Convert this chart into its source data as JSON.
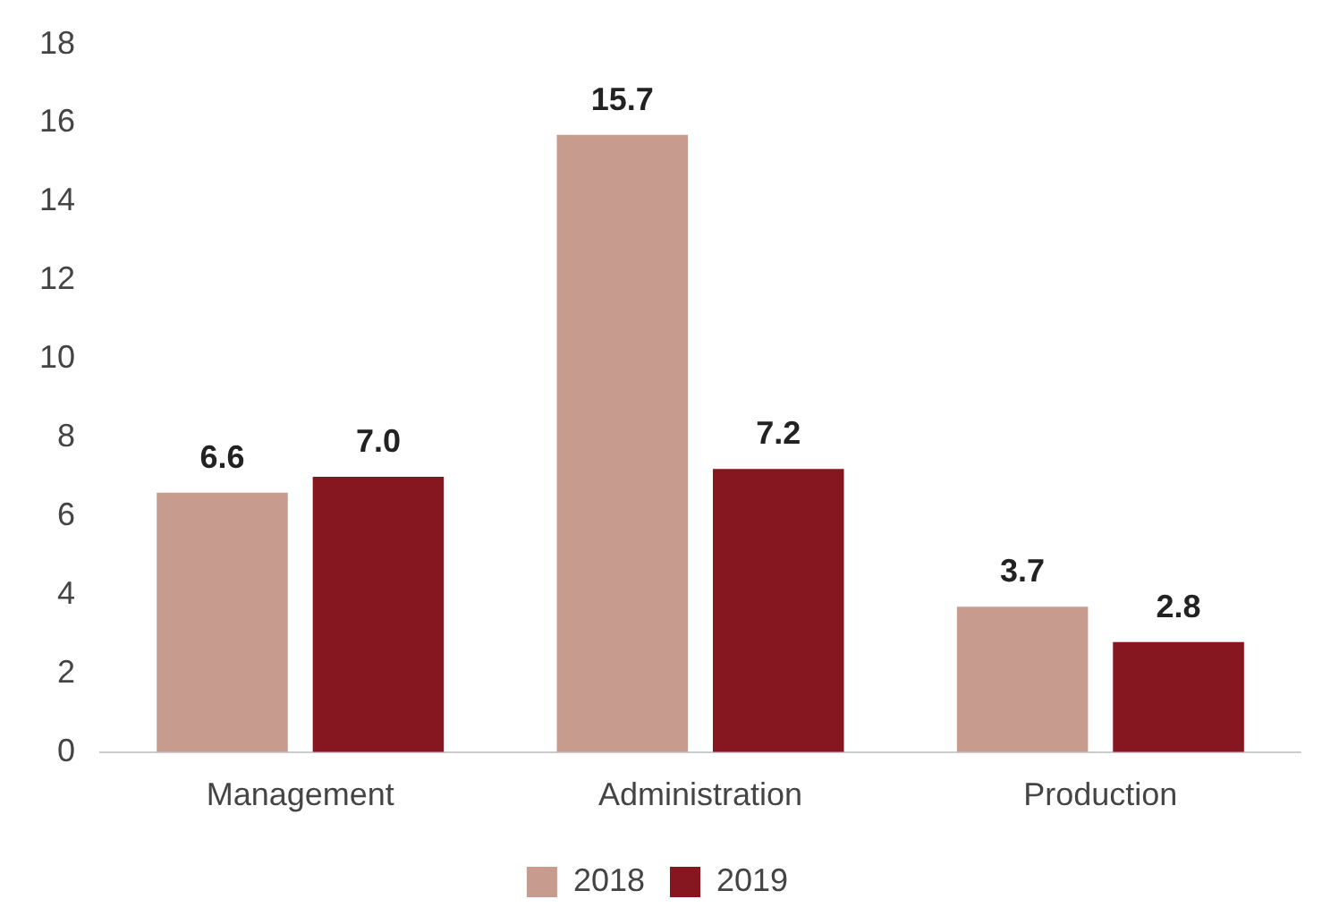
{
  "chart_data": {
    "type": "bar",
    "categories": [
      "Management",
      "Administration",
      "Production"
    ],
    "series": [
      {
        "name": "2018",
        "color": "#c89b8f",
        "values": [
          6.6,
          15.7,
          3.7
        ],
        "value_labels": [
          "6.6",
          "15.7",
          "3.7"
        ]
      },
      {
        "name": "2019",
        "color": "#861620",
        "values": [
          7.0,
          7.2,
          2.8
        ],
        "value_labels": [
          "7.0",
          "7.2",
          "2.8"
        ]
      }
    ],
    "ylim": [
      0,
      18
    ],
    "yticks": [
      0,
      2,
      4,
      6,
      8,
      10,
      12,
      14,
      16,
      18
    ],
    "grid": false,
    "legend": "bottom"
  }
}
